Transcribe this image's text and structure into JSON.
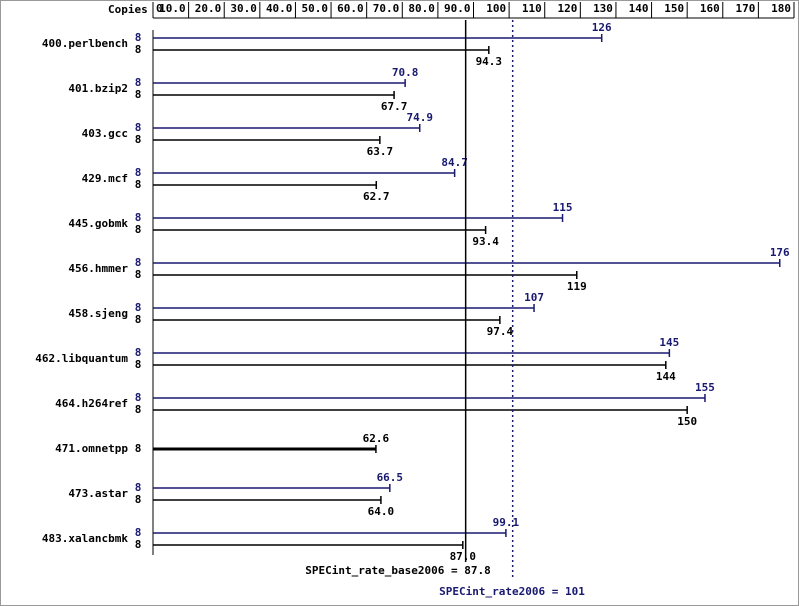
{
  "chart_data": {
    "type": "spec-bar",
    "axis_title": "Copies",
    "categories": [
      "400.perlbench",
      "401.bzip2",
      "403.gcc",
      "429.mcf",
      "445.gobmk",
      "456.hmmer",
      "458.sjeng",
      "462.libquantum",
      "464.h264ref",
      "471.omnetpp",
      "473.astar",
      "483.xalancbmk"
    ],
    "series": [
      {
        "color": "#191970",
        "style": "dotted",
        "copies": [
          8,
          8,
          8,
          8,
          8,
          8,
          8,
          8,
          8,
          null,
          8,
          8
        ],
        "values": [
          126,
          70.8,
          74.9,
          84.7,
          115,
          176,
          107,
          145,
          155,
          null,
          66.5,
          99.1
        ],
        "value_labels": [
          "126",
          "70.8",
          "74.9",
          "84.7",
          "115",
          "176",
          "107",
          "145",
          "155",
          null,
          "66.5",
          "99.1"
        ],
        "summary": "SPECint_rate2006 = 101",
        "summary_value": 101
      },
      {
        "color": "#000000",
        "style": "solid",
        "copies": [
          8,
          8,
          8,
          8,
          8,
          8,
          8,
          8,
          8,
          8,
          8,
          8
        ],
        "values": [
          94.3,
          67.7,
          63.7,
          62.7,
          93.4,
          119,
          97.4,
          144,
          150,
          62.6,
          64.0,
          87.0
        ],
        "value_labels": [
          "94.3",
          "67.7",
          "63.7",
          "62.7",
          "93.4",
          "119",
          "97.4",
          "144",
          "150",
          "62.6",
          "64.0",
          "87.0"
        ],
        "summary": "SPECint_rate_base2006 = 87.8",
        "summary_value": 87.8
      }
    ],
    "xlim": [
      0,
      180
    ],
    "xticks": [
      0,
      {
        "value": 10,
        "label": "10.0"
      },
      {
        "value": 20,
        "label": "20.0"
      },
      {
        "value": 30,
        "label": "30.0"
      },
      {
        "value": 40,
        "label": "40.0"
      },
      {
        "value": 50,
        "label": "50.0"
      },
      {
        "value": 60,
        "label": "60.0"
      },
      {
        "value": 70,
        "label": "70.0"
      },
      {
        "value": 80,
        "label": "80.0"
      },
      {
        "value": 90,
        "label": "90.0"
      },
      100,
      110,
      120,
      130,
      140,
      150,
      160,
      170,
      180
    ]
  }
}
